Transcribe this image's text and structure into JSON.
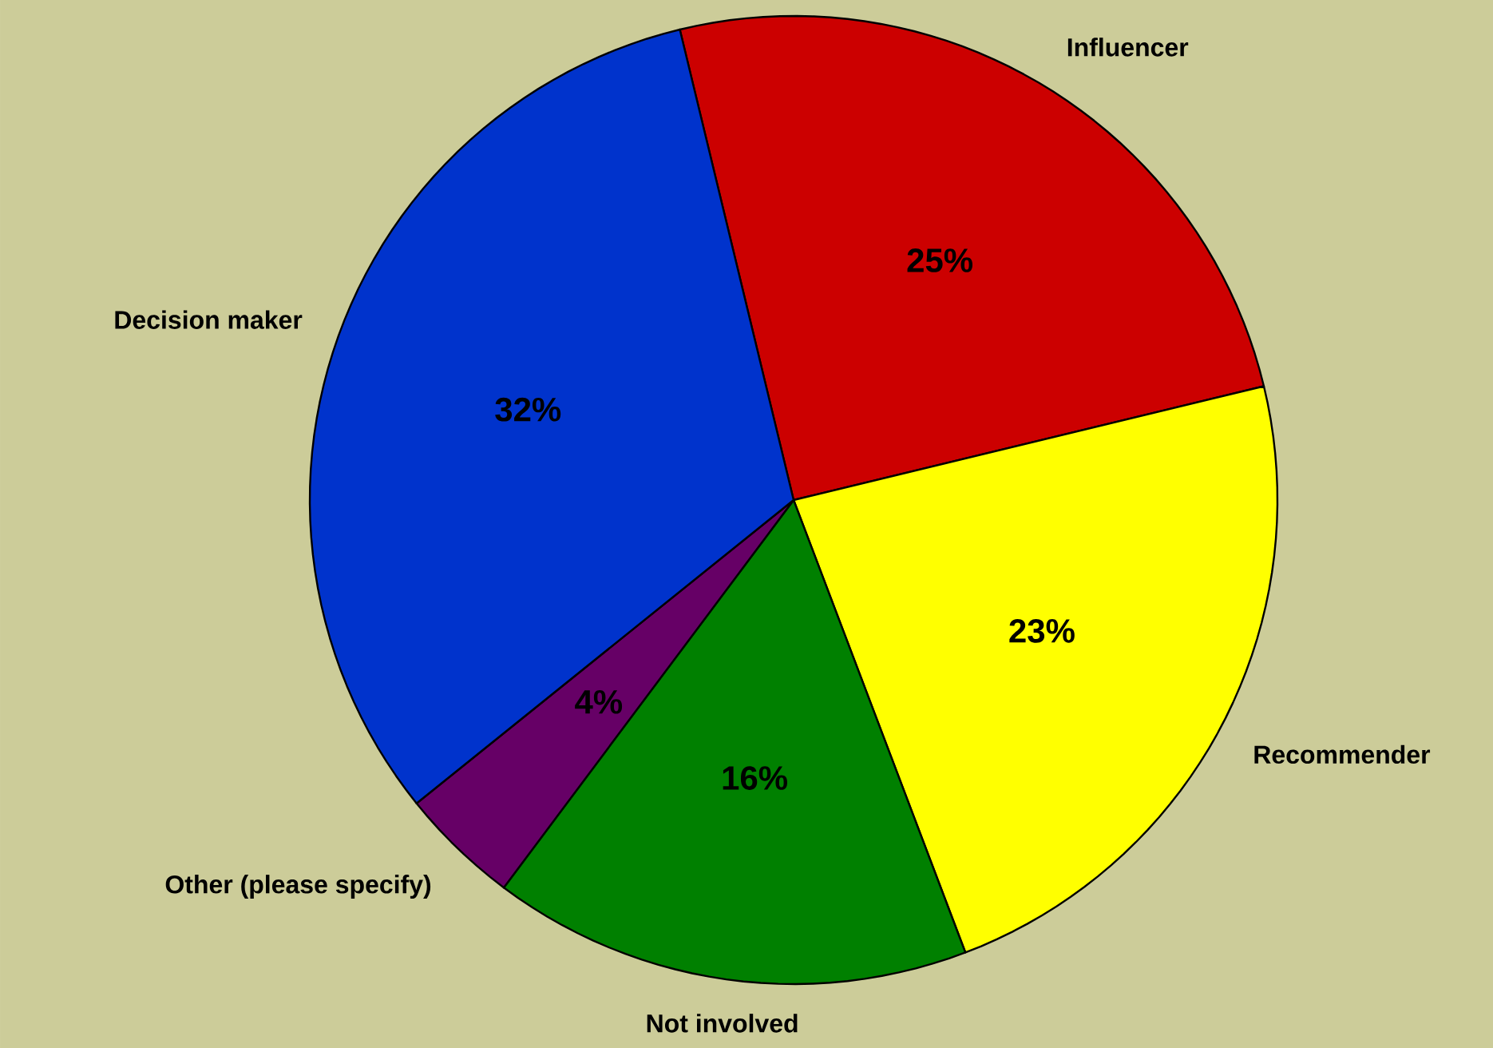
{
  "chart_data": {
    "type": "pie",
    "categories": [
      "Influencer",
      "Recommender",
      "Not involved",
      "Other (please specify)",
      "Decision maker"
    ],
    "values": [
      25,
      23,
      16,
      4,
      32
    ],
    "colors": [
      "#cc0000",
      "#ffff00",
      "#008000",
      "#660066",
      "#0033cc"
    ],
    "value_labels": [
      "25%",
      "23%",
      "16%",
      "4%",
      "32%"
    ]
  }
}
